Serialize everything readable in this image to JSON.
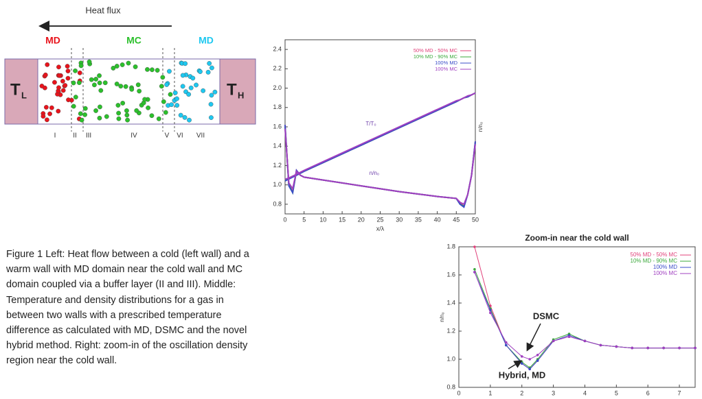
{
  "diagram": {
    "heat_flux": "Heat flux",
    "regions": [
      {
        "label": "MD",
        "color": "#e8141c"
      },
      {
        "label": "MC",
        "color": "#2cc02c"
      },
      {
        "label": "MD",
        "color": "#1ec8f0"
      }
    ],
    "cold_wall": {
      "symbol": "T",
      "subscript": "L"
    },
    "hot_wall": {
      "symbol": "T",
      "subscript": "H"
    },
    "zones": [
      "I",
      "II",
      "III",
      "IV",
      "V",
      "VI",
      "VII"
    ]
  },
  "chart_data": [
    {
      "type": "line",
      "xlabel": "x/λ",
      "ylabel": "n/n₀",
      "x": [
        0,
        1,
        2,
        3,
        4,
        5,
        10,
        20,
        30,
        40,
        45,
        46,
        47,
        48,
        49,
        50
      ],
      "xlim": [
        0,
        50
      ],
      "xticks": [
        0,
        5,
        10,
        15,
        20,
        25,
        30,
        35,
        40,
        45,
        50
      ],
      "ylim": [
        0.7,
        2.5
      ],
      "yticks": [
        0.8,
        {
          "value": 1,
          "label": "1.0"
        },
        1.2,
        1.4,
        1.6,
        1.8,
        {
          "value": 2,
          "label": "2.0"
        },
        2.2,
        2.4
      ],
      "annotations": [
        "T/T₀",
        "n/n₀"
      ],
      "legend": "upper right",
      "series": [
        {
          "name": "50% MD - 50% MC",
          "color": "#e0407a",
          "values": [
            1.62,
            1.0,
            0.93,
            1.15,
            1.1,
            1.08,
            1.05,
            0.99,
            0.93,
            0.88,
            0.86,
            0.81,
            0.78,
            0.9,
            1.1,
            1.45
          ],
          "T_values": [
            1.05,
            1.07,
            1.09,
            1.1,
            1.12,
            1.14,
            1.23,
            1.41,
            1.59,
            1.77,
            1.86,
            1.88,
            1.9,
            1.91,
            1.93,
            1.95
          ]
        },
        {
          "name": "10% MD - 90% MC",
          "color": "#3aa83a",
          "values": [
            1.6,
            1.0,
            0.92,
            1.14,
            1.1,
            1.08,
            1.05,
            0.99,
            0.93,
            0.88,
            0.86,
            0.8,
            0.78,
            0.9,
            1.1,
            1.44
          ],
          "T_values": [
            1.05,
            1.07,
            1.09,
            1.1,
            1.12,
            1.14,
            1.23,
            1.41,
            1.59,
            1.77,
            1.86,
            1.88,
            1.9,
            1.91,
            1.93,
            1.95
          ]
        },
        {
          "name": "100% MD",
          "color": "#3a4cc8",
          "values": [
            1.62,
            0.99,
            0.92,
            1.15,
            1.1,
            1.08,
            1.05,
            0.99,
            0.93,
            0.88,
            0.86,
            0.8,
            0.77,
            0.9,
            1.1,
            1.45
          ],
          "T_values": [
            1.04,
            1.06,
            1.08,
            1.1,
            1.12,
            1.14,
            1.23,
            1.41,
            1.59,
            1.77,
            1.86,
            1.88,
            1.9,
            1.91,
            1.93,
            1.95
          ]
        },
        {
          "name": "100% MC",
          "color": "#a040c0",
          "values": [
            1.58,
            1.02,
            0.96,
            1.14,
            1.1,
            1.08,
            1.05,
            0.99,
            0.93,
            0.88,
            0.86,
            0.82,
            0.8,
            0.9,
            1.1,
            1.42
          ],
          "T_values": [
            1.06,
            1.07,
            1.09,
            1.11,
            1.13,
            1.15,
            1.24,
            1.42,
            1.6,
            1.78,
            1.87,
            1.88,
            1.9,
            1.92,
            1.93,
            1.95
          ]
        }
      ]
    },
    {
      "type": "line",
      "title": "Zoom-in near the cold wall",
      "ylabel": "n/n₀",
      "x": [
        0.5,
        1,
        1.5,
        2,
        2.25,
        2.5,
        3,
        3.5,
        4,
        4.5,
        5,
        5.5,
        6,
        6.5,
        7,
        7.5
      ],
      "xlim": [
        0,
        7.5
      ],
      "xticks": [
        0,
        1,
        2,
        3,
        4,
        5,
        6,
        7
      ],
      "ylim": [
        0.8,
        1.8
      ],
      "yticks": [
        0.8,
        {
          "value": 1,
          "label": "1.0"
        },
        1.2,
        1.4,
        1.6,
        1.8
      ],
      "annotations": [
        "DSMC",
        "Hybrid, MD"
      ],
      "legend": "upper right",
      "series": [
        {
          "name": "50% MD - 50% MC",
          "color": "#e0407a",
          "values": [
            1.8,
            1.38,
            1.1,
            0.97,
            0.93,
            0.99,
            1.13,
            1.17,
            1.13,
            1.1,
            1.09,
            1.08,
            1.08,
            1.08,
            1.08,
            1.08
          ]
        },
        {
          "name": "10% MD - 90% MC",
          "color": "#3aa83a",
          "values": [
            1.64,
            1.36,
            1.1,
            0.98,
            0.94,
            1.0,
            1.14,
            1.18,
            1.13,
            1.1,
            1.09,
            1.08,
            1.08,
            1.08,
            1.08,
            1.08
          ]
        },
        {
          "name": "100% MD",
          "color": "#3a4cc8",
          "values": [
            1.62,
            1.35,
            1.1,
            0.97,
            0.93,
            0.99,
            1.13,
            1.17,
            1.13,
            1.1,
            1.09,
            1.08,
            1.08,
            1.08,
            1.08,
            1.08
          ]
        },
        {
          "name": "100% MC",
          "color": "#a040c0",
          "values": [
            1.62,
            1.33,
            1.12,
            1.02,
            1.0,
            1.03,
            1.13,
            1.16,
            1.13,
            1.1,
            1.09,
            1.08,
            1.08,
            1.08,
            1.08,
            1.08
          ]
        }
      ]
    }
  ],
  "caption": [
    "Figure 1 Left: Heat flow between a cold (left wall) and a",
    "warm wall with MD domain near the cold wall and MC",
    "domain coupled via a buffer layer (II and III). Middle:",
    "Temperature and density distributions for a gas in",
    "between two walls with a prescribed temperature",
    "difference as calculated with MD, DSMC and the novel",
    "hybrid method. Right:  zoom-in of the oscillation density",
    "region near the cold wall."
  ]
}
